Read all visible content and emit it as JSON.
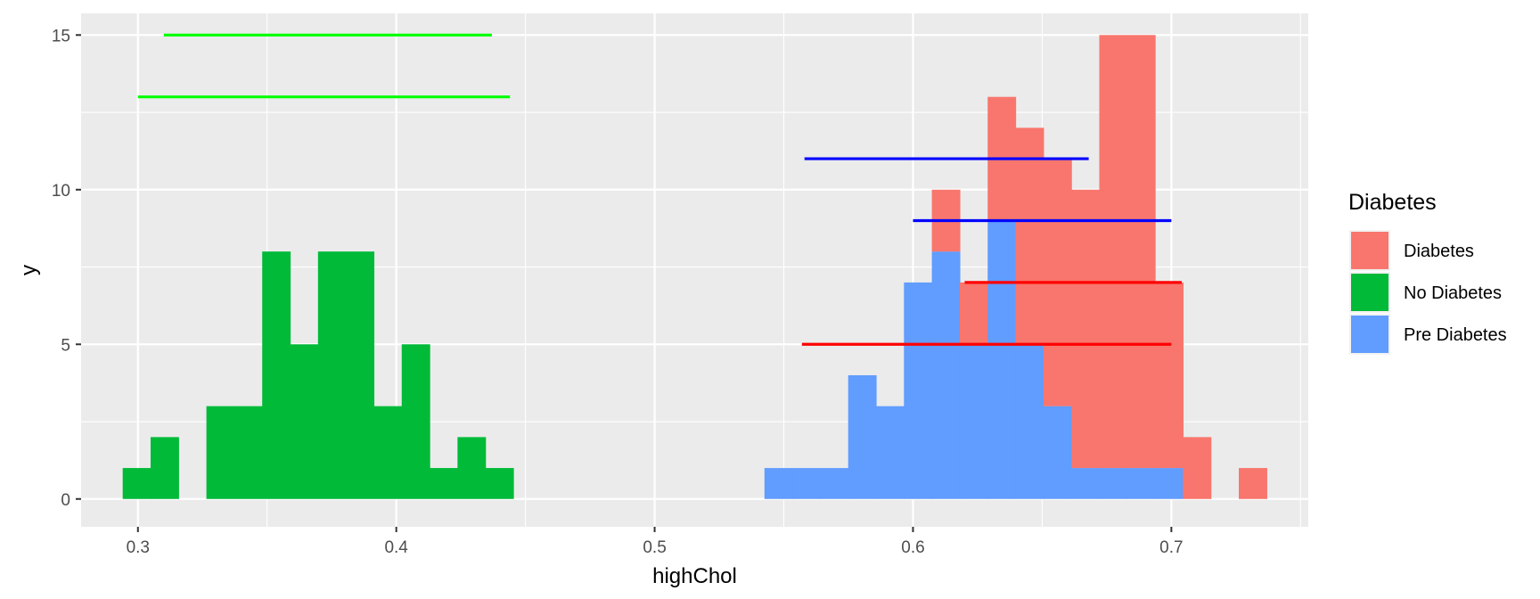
{
  "chart_data": {
    "type": "bar",
    "subtype": "stacked-histogram-with-range-segments",
    "title": "",
    "xlabel": "highChol",
    "ylabel": "y",
    "xlim": [
      0.278,
      0.753
    ],
    "ylim": [
      -0.9,
      15.7
    ],
    "x_ticks": [
      0.3,
      0.4,
      0.5,
      0.6,
      0.7
    ],
    "x_tick_labels": [
      "0.3",
      "0.4",
      "0.5",
      "0.6",
      "0.7"
    ],
    "y_ticks": [
      0,
      5,
      10,
      15
    ],
    "y_tick_labels": [
      "0",
      "5",
      "10",
      "15"
    ],
    "grid": true,
    "bin_width": 0.0108,
    "legend": {
      "title": "Diabetes",
      "position": "right",
      "entries": [
        {
          "label": "Diabetes",
          "color": "#F8766D"
        },
        {
          "label": "No Diabetes",
          "color": "#00BA38"
        },
        {
          "label": "Pre Diabetes",
          "color": "#619CFF"
        }
      ]
    },
    "bin_centers": [
      0.2995,
      0.3103,
      0.3211,
      0.3319,
      0.3427,
      0.3535,
      0.3643,
      0.3751,
      0.3859,
      0.3967,
      0.4075,
      0.4183,
      0.4291,
      0.4399,
      0.4507,
      0.5479,
      0.5587,
      0.5695,
      0.5803,
      0.5911,
      0.6019,
      0.6127,
      0.6235,
      0.6343,
      0.6451,
      0.6559,
      0.6667,
      0.6775,
      0.6883,
      0.6991,
      0.7099,
      0.7207,
      0.7315
    ],
    "series": [
      {
        "name": "No Diabetes",
        "color": "#00BA38",
        "values": [
          1,
          2,
          0,
          3,
          3,
          8,
          5,
          8,
          8,
          3,
          5,
          1,
          2,
          1,
          0,
          0,
          0,
          0,
          0,
          0,
          0,
          0,
          0,
          0,
          0,
          0,
          0,
          0,
          0,
          0,
          0,
          0,
          0
        ]
      },
      {
        "name": "Pre Diabetes",
        "color": "#619CFF",
        "values": [
          0,
          0,
          0,
          0,
          0,
          0,
          0,
          0,
          0,
          0,
          0,
          0,
          0,
          0,
          0,
          1,
          1,
          1,
          4,
          3,
          7,
          8,
          5,
          9,
          5,
          3,
          1,
          1,
          1,
          1,
          0,
          0,
          0
        ]
      },
      {
        "name": "Diabetes",
        "color": "#F8766D",
        "values": [
          0,
          0,
          0,
          0,
          0,
          0,
          0,
          0,
          0,
          0,
          0,
          0,
          0,
          0,
          0,
          0,
          0,
          0,
          0,
          0,
          0,
          2,
          2,
          4,
          7,
          8,
          9,
          14,
          14,
          6,
          2,
          0,
          1
        ]
      }
    ],
    "segments": [
      {
        "color": "#00FF00",
        "x_start": 0.31,
        "x_end": 0.437,
        "y": 15
      },
      {
        "color": "#00FF00",
        "x_start": 0.3,
        "x_end": 0.444,
        "y": 13
      },
      {
        "color": "#0000FF",
        "x_start": 0.558,
        "x_end": 0.668,
        "y": 11
      },
      {
        "color": "#0000FF",
        "x_start": 0.6,
        "x_end": 0.7,
        "y": 9
      },
      {
        "color": "#FF0000",
        "x_start": 0.62,
        "x_end": 0.704,
        "y": 7
      },
      {
        "color": "#FF0000",
        "x_start": 0.557,
        "x_end": 0.7,
        "y": 5
      }
    ]
  }
}
